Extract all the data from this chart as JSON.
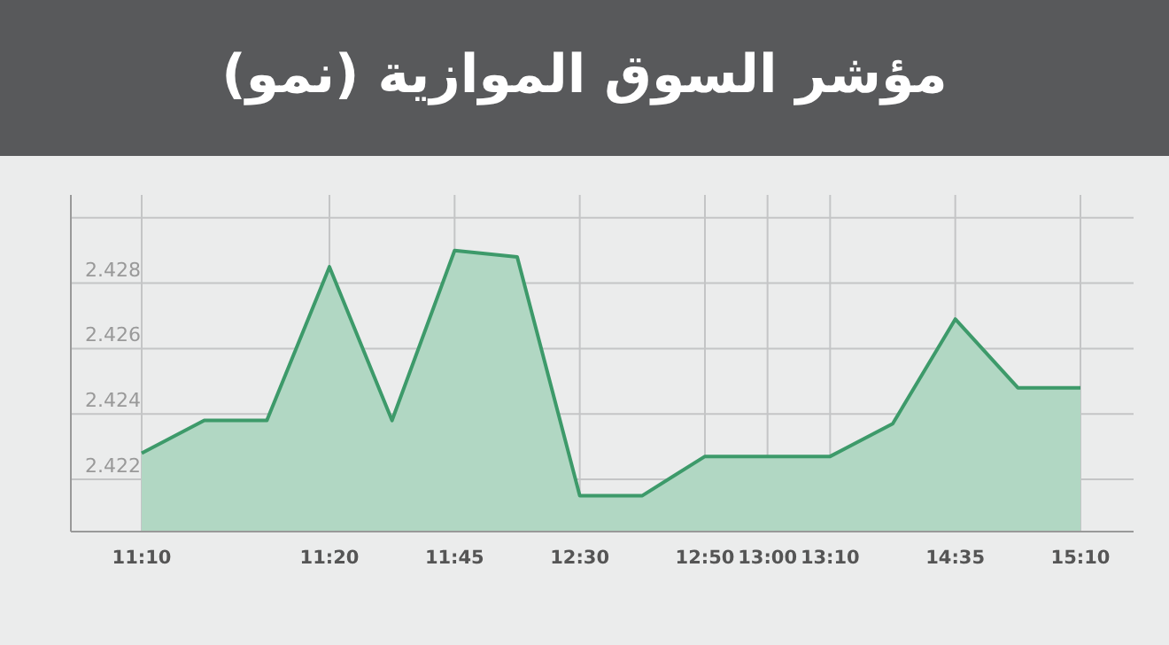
{
  "chart_data": {
    "type": "area",
    "title": "مؤشر السوق الموازية (نمو)",
    "categories": [
      "11:10",
      null,
      null,
      "11:20",
      null,
      "11:45",
      null,
      "12:30",
      null,
      "12:50",
      "13:00",
      "13:10",
      null,
      "14:35",
      null,
      "15:10"
    ],
    "series": [
      {
        "color": "#3d9a6a",
        "values": [
          2.4228,
          2.4238,
          2.4238,
          2.4285,
          2.4238,
          2.429,
          2.4288,
          2.4215,
          2.4215,
          2.4227,
          2.4227,
          2.4227,
          2.4237,
          2.4269,
          2.4248,
          2.4248
        ]
      }
    ],
    "ylim": [
      2.4204,
      2.4307
    ],
    "yticks": [
      2.422,
      2.424,
      2.426,
      2.428,
      {
        "value": 2.43,
        "label": null
      }
    ],
    "grid": true
  }
}
